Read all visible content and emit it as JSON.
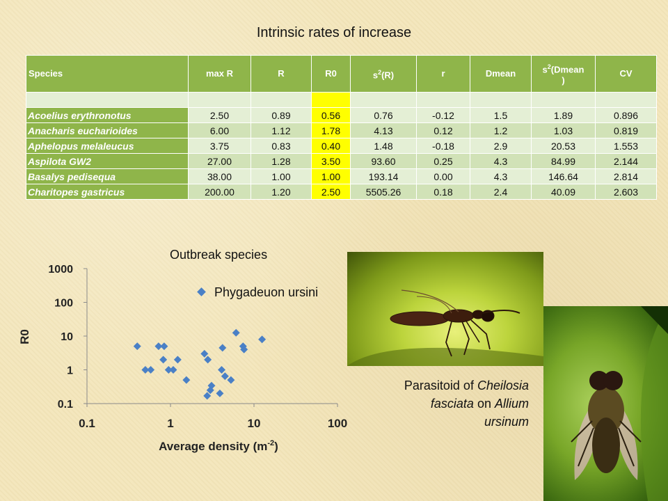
{
  "title": "Intrinsic rates of increase",
  "table": {
    "headers": [
      "Species",
      "max R",
      "R",
      "R0",
      "s",
      "(R)",
      "r",
      "Dmean",
      "s",
      "(Dmean",
      ")",
      "CV"
    ],
    "superscript": "2",
    "rows": [
      {
        "species": "Acoelius erythronotus",
        "max_r": "2.50",
        "r_val": "0.89",
        "r0": "0.56",
        "s2r": "0.76",
        "r": "-0.12",
        "dmean": "1.5",
        "s2d": "1.89",
        "cv": "0.896"
      },
      {
        "species": "Anacharis eucharioides",
        "max_r": "6.00",
        "r_val": "1.12",
        "r0": "1.78",
        "s2r": "4.13",
        "r": "0.12",
        "dmean": "1.2",
        "s2d": "1.03",
        "cv": "0.819"
      },
      {
        "species": "Aphelopus melaleucus",
        "max_r": "3.75",
        "r_val": "0.83",
        "r0": "0.40",
        "s2r": "1.48",
        "r": "-0.18",
        "dmean": "2.9",
        "s2d": "20.53",
        "cv": "1.553"
      },
      {
        "species": "Aspilota GW2",
        "max_r": "27.00",
        "r_val": "1.28",
        "r0": "3.50",
        "s2r": "93.60",
        "r": "0.25",
        "dmean": "4.3",
        "s2d": "84.99",
        "cv": "2.144"
      },
      {
        "species": "Basalys pedisequa",
        "max_r": "38.00",
        "r_val": "1.00",
        "r0": "1.00",
        "s2r": "193.14",
        "r": "0.00",
        "dmean": "4.3",
        "s2d": "146.64",
        "cv": "2.814"
      },
      {
        "species": "Charitopes gastricus",
        "max_r": "200.00",
        "r_val": "1.20",
        "r0": "2.50",
        "s2r": "5505.26",
        "r": "0.18",
        "dmean": "2.4",
        "s2d": "40.09",
        "cv": "2.603"
      }
    ],
    "highlight_color": "#ffff00",
    "header_color": "#8fb54a"
  },
  "chart_data": {
    "type": "scatter",
    "title": "Outbreak species",
    "xlabel": "Average density (m",
    "xlabel_sup": "-2",
    "xlabel_end": ")",
    "ylabel": "R0",
    "x_scale": "log",
    "y_scale": "log",
    "xlim": [
      0.1,
      100
    ],
    "ylim": [
      0.1,
      1000
    ],
    "x_ticks": [
      "0.1",
      "1",
      "10",
      "100"
    ],
    "y_ticks": [
      "0.1",
      "1",
      "10",
      "100",
      "1000"
    ],
    "series": [
      {
        "name": "Phygadeuon ursini",
        "color": "#4a80c6",
        "marker": "diamond",
        "x": [
          0.4,
          0.5,
          0.58,
          0.72,
          0.84,
          0.82,
          0.95,
          1.08,
          1.22,
          1.55,
          2.55,
          2.8,
          2.75,
          3.1,
          3.0,
          3.9,
          4.2,
          4.1,
          4.5,
          5.3,
          6.1,
          7.4,
          7.6,
          12.5
        ],
        "y": [
          5.0,
          1.0,
          1.0,
          5.0,
          5.0,
          2.0,
          1.0,
          1.0,
          2.0,
          0.5,
          3.0,
          2.0,
          0.17,
          0.34,
          0.25,
          0.2,
          4.5,
          1.0,
          0.65,
          0.5,
          12.5,
          5.0,
          4.0,
          8.0
        ]
      }
    ],
    "legend_placement": "top"
  },
  "caption": {
    "line1_a": "Parasitoid of ",
    "line1_b": "Cheilosia",
    "line2_a": "fasciata",
    "line2_b": " on ",
    "line2_c": "Allium",
    "line3": "ursinum"
  }
}
